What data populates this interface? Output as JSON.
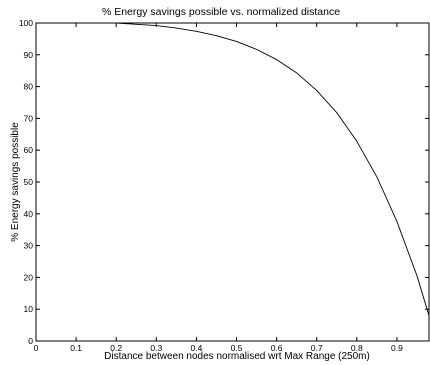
{
  "chart_data": {
    "type": "line",
    "title": "% Energy savings possible vs. normalized distance",
    "xlabel": "Distance between nodes  normalised wrt Max Range (250m)",
    "ylabel": "% Energy savings possible",
    "xlim": [
      0,
      0.98
    ],
    "ylim": [
      0,
      100
    ],
    "xticks": [
      0,
      0.1,
      0.2,
      0.3,
      0.4,
      0.5,
      0.6,
      0.7,
      0.8,
      0.9
    ],
    "xtick_labels": [
      "0",
      "0.1",
      "0.2",
      "0.3",
      "0.4",
      "0.5",
      "0.6",
      "0.7",
      "0.8",
      "0.9"
    ],
    "yticks": [
      0,
      10,
      20,
      30,
      40,
      50,
      60,
      70,
      80,
      90,
      100
    ],
    "ytick_labels": [
      "0",
      "10",
      "20",
      "30",
      "40",
      "50",
      "60",
      "70",
      "80",
      "90",
      "100"
    ],
    "grid": false,
    "series": [
      {
        "color": "#000000",
        "x": [
          0.2,
          0.25,
          0.3,
          0.35,
          0.4,
          0.45,
          0.5,
          0.55,
          0.6,
          0.65,
          0.7,
          0.75,
          0.8,
          0.85,
          0.9,
          0.95,
          0.98
        ],
        "y": [
          100,
          99.6,
          99.2,
          98.4,
          97.4,
          96,
          94.2,
          91.7,
          88.5,
          84.3,
          78.8,
          71.8,
          62.8,
          51.6,
          37.6,
          20.5,
          8
        ]
      }
    ]
  }
}
